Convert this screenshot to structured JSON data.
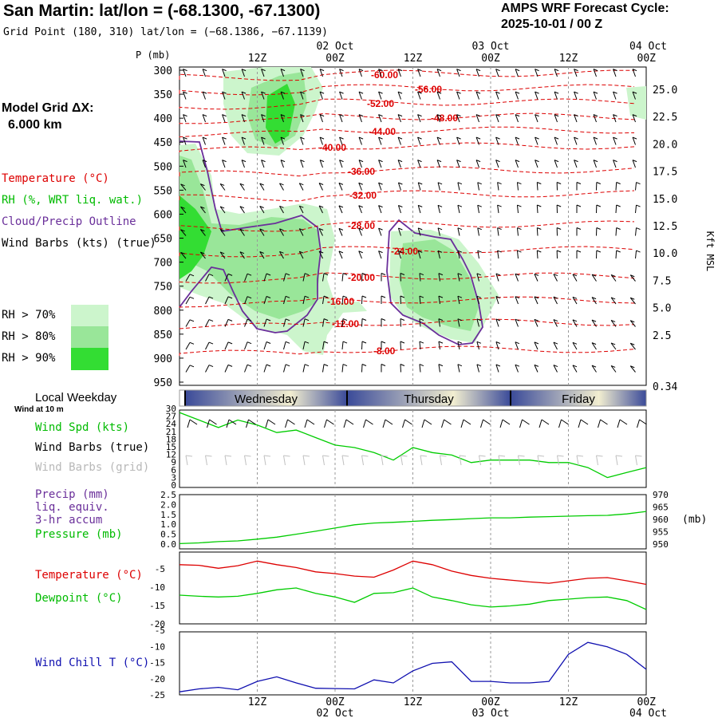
{
  "header": {
    "title": "San Martin:  lat/lon = (-68.1300, -67.1300)",
    "grid_point": "Grid Point (180, 310) lat/lon = (−68.1386, −67.1139)",
    "cycle_line1": "AMPS WRF Forecast Cycle:",
    "cycle_line2": "2025-10-01 / 00  Z",
    "model_grid_line1": "Model Grid ΔX:",
    "model_grid_line2": "6.000 km"
  },
  "legend": {
    "temperature": "Temperature (°C)",
    "rh": "RH (%, WRT liq. wat.)",
    "cloud": "Cloud/Precip Outline",
    "wind_barbs": "Wind Barbs (kts) (true)",
    "rh70": "RH > 70%",
    "rh80": "RH > 80%",
    "rh90": "RH > 90%",
    "local_weekday": "Local Weekday",
    "wind_at": "Wind at 10 m",
    "wind_spd": "Wind Spd (kts)",
    "wind_barbs_true": "Wind Barbs (true)",
    "wind_barbs_grid": "Wind Barbs (grid)",
    "precip": "Precip (mm)",
    "liq_equiv": "liq. equiv.",
    "accum": "3-hr accum",
    "pressure": "Pressure (mb)",
    "temp2": "Temperature (°C)",
    "dewpoint": "Dewpoint (°C)",
    "wind_chill": "Wind Chill T (°C)",
    "pressure_unit": "(mb)"
  },
  "colors": {
    "temperature": "#dd0000",
    "cloud_outline": "#6a2f9a",
    "rh70": "#ccf5cc",
    "rh80": "#99e699",
    "rh90": "#33dd33",
    "series_green": "#00cc00",
    "wind_chill": "#1010b0",
    "grid_barbs": "#c0c0c0",
    "day_band_dark": "#3a4a99",
    "day_band_light": "#f2eed0"
  },
  "time_axis": {
    "top_ticks": [
      "12Z",
      "00Z",
      "12Z",
      "00Z",
      "12Z",
      "00Z"
    ],
    "top_dates": [
      "02 Oct",
      "03 Oct",
      "04 Oct"
    ],
    "bottom_ticks": [
      "12Z",
      "00Z",
      "12Z",
      "00Z",
      "12Z",
      "00Z"
    ],
    "bottom_dates": [
      "02 Oct",
      "03 Oct",
      "04 Oct"
    ],
    "days": [
      "Wednesday",
      "Thursday",
      "Friday"
    ]
  },
  "chart_data": [
    {
      "type": "heatmap",
      "title": "",
      "ylabel": "P (mb)",
      "y2label": "Kft MSL",
      "pressure_ticks": [
        300,
        350,
        400,
        450,
        500,
        550,
        600,
        650,
        700,
        750,
        800,
        850,
        900,
        950
      ],
      "height_ticks": [
        "25.0",
        "22.5",
        "20.0",
        "17.5",
        "15.0",
        "12.5",
        "10.0",
        "7.5",
        "5.0",
        "2.5",
        "0.34"
      ],
      "temperature_contour_labels": [
        "-60.00",
        "-56.00",
        "-52.00",
        "-48.00",
        "-44.00",
        "-40.00",
        "-36.00",
        "-32.00",
        "-28.00",
        "-24.00",
        "-20.00",
        "-16.00",
        "-12.00",
        "-8.00"
      ],
      "ylim": [
        950,
        300
      ]
    },
    {
      "type": "line",
      "title": "",
      "ylabel": "Wind Spd (kts)",
      "y_ticks": [
        "30",
        "27",
        "24",
        "21",
        "18",
        "15",
        "12",
        "9",
        "6",
        "3",
        "0"
      ],
      "ylim": [
        0,
        30
      ],
      "x_hours": [
        0,
        3,
        6,
        9,
        12,
        15,
        18,
        21,
        24,
        27,
        30,
        33,
        36,
        39,
        42,
        45,
        48,
        51,
        54,
        57,
        60,
        63,
        66,
        69,
        72
      ],
      "series": [
        {
          "name": "Wind Spd (kts)",
          "values": [
            29,
            26,
            23,
            26,
            24,
            21,
            22,
            19,
            16,
            15,
            13,
            10,
            15,
            13,
            12,
            9,
            10,
            10,
            10,
            9,
            9,
            7,
            3,
            5,
            7
          ]
        }
      ]
    },
    {
      "type": "line",
      "title": "",
      "ylabel": "Precip (mm) / Pressure (mb)",
      "y_ticks": [
        "2.5",
        "2.0",
        "1.5",
        "1.0",
        "0.5",
        "0.0"
      ],
      "y2_ticks": [
        "970",
        "965",
        "960",
        "955",
        "950"
      ],
      "ylim": [
        0,
        2.5
      ],
      "y2lim": [
        950,
        970
      ],
      "x_hours": [
        0,
        3,
        6,
        9,
        12,
        15,
        18,
        21,
        24,
        27,
        30,
        33,
        36,
        39,
        42,
        45,
        48,
        51,
        54,
        57,
        60,
        63,
        66,
        69,
        72
      ],
      "series": [
        {
          "name": "Pressure (mb)",
          "values": [
            950.2,
            950.5,
            951.0,
            951.3,
            952.0,
            952.8,
            954.0,
            955.2,
            956.5,
            957.8,
            958.5,
            958.8,
            959.2,
            959.6,
            959.9,
            960.3,
            960.6,
            960.6,
            960.9,
            961.1,
            961.3,
            961.5,
            961.6,
            962.2,
            963.2
          ]
        },
        {
          "name": "Precip (mm)",
          "values": [
            0,
            0,
            0,
            0,
            0,
            0,
            0,
            0,
            0,
            0,
            0,
            0,
            0,
            0,
            0,
            0,
            0,
            0,
            0,
            0,
            0,
            0,
            0,
            0,
            0
          ]
        }
      ]
    },
    {
      "type": "line",
      "title": "",
      "ylabel": "Temperature (°C)",
      "y_ticks": [
        "-5",
        "-10",
        "-15",
        "-20"
      ],
      "ylim": [
        -20,
        0
      ],
      "x_hours": [
        0,
        3,
        6,
        9,
        12,
        15,
        18,
        21,
        24,
        27,
        30,
        33,
        36,
        39,
        42,
        45,
        48,
        51,
        54,
        57,
        60,
        63,
        66,
        69,
        72
      ],
      "series": [
        {
          "name": "Temperature (°C)",
          "values": [
            -4.0,
            -4.2,
            -5.0,
            -4.3,
            -3.0,
            -4.0,
            -4.8,
            -6.0,
            -6.5,
            -7.2,
            -7.5,
            -5.5,
            -3.0,
            -4.0,
            -5.8,
            -7.0,
            -7.8,
            -8.3,
            -8.8,
            -9.2,
            -8.5,
            -7.8,
            -7.6,
            -8.5,
            -9.5
          ]
        },
        {
          "name": "Dewpoint (°C)",
          "values": [
            -12.5,
            -12.8,
            -13.0,
            -12.8,
            -12.0,
            -11.0,
            -10.5,
            -12.0,
            -13.0,
            -14.5,
            -12.0,
            -11.8,
            -10.5,
            -13.0,
            -14.0,
            -15.2,
            -15.8,
            -15.5,
            -15.0,
            -14.0,
            -13.6,
            -13.2,
            -13.0,
            -14.0,
            -16.5
          ]
        }
      ]
    },
    {
      "type": "line",
      "title": "",
      "ylabel": "Wind Chill T (°C)",
      "y_ticks": [
        "-5",
        "-10",
        "-15",
        "-20",
        "-25"
      ],
      "ylim": [
        -25,
        -5
      ],
      "x_hours": [
        0,
        3,
        6,
        9,
        12,
        15,
        18,
        21,
        24,
        27,
        30,
        33,
        36,
        39,
        42,
        45,
        48,
        51,
        54,
        57,
        60,
        63,
        66,
        69,
        72
      ],
      "series": [
        {
          "name": "Wind Chill T (°C)",
          "values": [
            -24.5,
            -23.5,
            -23.0,
            -23.8,
            -21.0,
            -19.5,
            -21.5,
            -23.3,
            -23.4,
            -23.5,
            -20.5,
            -21.5,
            -17.5,
            -15.0,
            -14.5,
            -21.0,
            -21.0,
            -21.5,
            -21.5,
            -21.0,
            -12.0,
            -8.0,
            -9.5,
            -12.0,
            -17.0
          ]
        }
      ]
    }
  ]
}
